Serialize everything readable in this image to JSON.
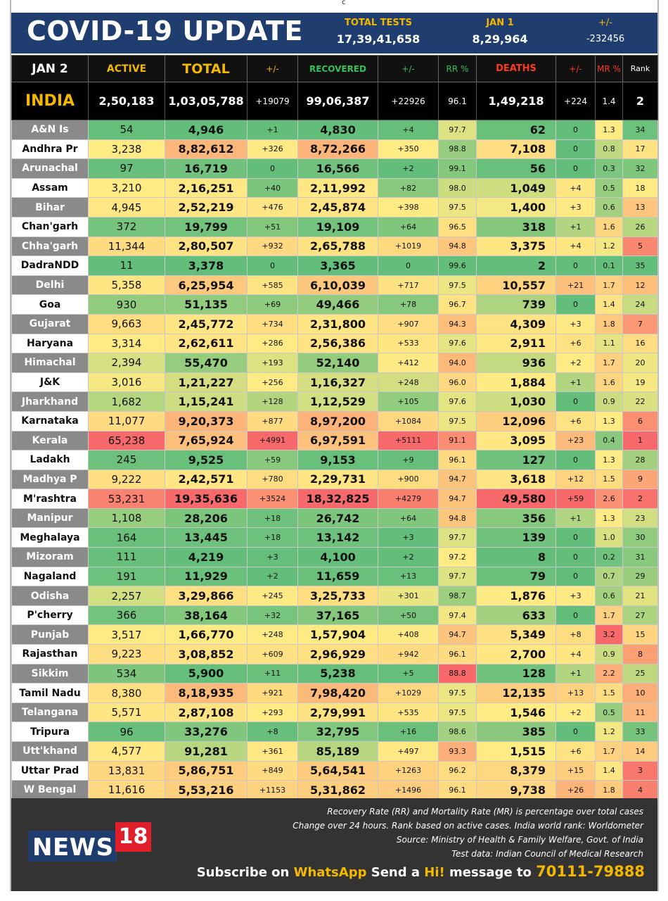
{
  "top_mark": "c",
  "header": {
    "title": "COVID-19 UPDATE",
    "total_tests": {
      "label": "TOTAL TESTS",
      "value": "17,39,41,658"
    },
    "jan1": {
      "label": "JAN 1",
      "value": "8,29,964"
    },
    "diff": {
      "label": "+/-",
      "value": "-232456"
    }
  },
  "columns": {
    "date": "JAN 2",
    "active": "ACTIVE",
    "total": "TOTAL",
    "total_change": "+/-",
    "recovered": "RECOVERED",
    "recovered_change": "+/-",
    "rr": "RR %",
    "deaths": "DEATHS",
    "deaths_change": "+/-",
    "mr": "MR %",
    "rank": "Rank"
  },
  "india": {
    "name": "INDIA",
    "active": "2,50,183",
    "total": "1,03,05,788",
    "total_change": "+19079",
    "recovered": "99,06,387",
    "recovered_change": "+22926",
    "rr": "96.1",
    "deaths": "1,49,218",
    "deaths_change": "+224",
    "mr": "1.4",
    "rank": "2"
  },
  "states": [
    [
      "A&N Is",
      "54",
      "4,946",
      "+1",
      "4,830",
      "+4",
      "97.7",
      "62",
      "0",
      "1.3",
      "34"
    ],
    [
      "Andhra Pr",
      "3,238",
      "8,82,612",
      "+326",
      "8,72,266",
      "+350",
      "98.8",
      "7,108",
      "0",
      "0.8",
      "17"
    ],
    [
      "Arunachal",
      "97",
      "16,719",
      "0",
      "16,566",
      "+2",
      "99.1",
      "56",
      "0",
      "0.3",
      "32"
    ],
    [
      "Assam",
      "3,210",
      "2,16,251",
      "+40",
      "2,11,992",
      "+82",
      "98.0",
      "1,049",
      "+4",
      "0.5",
      "18"
    ],
    [
      "Bihar",
      "4,945",
      "2,52,219",
      "+476",
      "2,45,874",
      "+398",
      "97.5",
      "1,400",
      "+3",
      "0.6",
      "13"
    ],
    [
      "Chan'garh",
      "372",
      "19,799",
      "+51",
      "19,109",
      "+64",
      "96.5",
      "318",
      "+1",
      "1.6",
      "26"
    ],
    [
      "Chha'garh",
      "11,344",
      "2,80,507",
      "+932",
      "2,65,788",
      "+1019",
      "94.8",
      "3,375",
      "+4",
      "1.2",
      "5"
    ],
    [
      "DadraNDD",
      "11",
      "3,378",
      "0",
      "3,365",
      "0",
      "99.6",
      "2",
      "0",
      "0.1",
      "35"
    ],
    [
      "Delhi",
      "5,358",
      "6,25,954",
      "+585",
      "6,10,039",
      "+717",
      "97.5",
      "10,557",
      "+21",
      "1.7",
      "12"
    ],
    [
      "Goa",
      "930",
      "51,135",
      "+69",
      "49,466",
      "+78",
      "96.7",
      "739",
      "0",
      "1.4",
      "24"
    ],
    [
      "Gujarat",
      "9,663",
      "2,45,772",
      "+734",
      "2,31,800",
      "+907",
      "94.3",
      "4,309",
      "+3",
      "1.8",
      "7"
    ],
    [
      "Haryana",
      "3,314",
      "2,62,611",
      "+286",
      "2,56,386",
      "+533",
      "97.6",
      "2,911",
      "+6",
      "1.1",
      "16"
    ],
    [
      "Himachal",
      "2,394",
      "55,470",
      "+193",
      "52,140",
      "+412",
      "94.0",
      "936",
      "+2",
      "1.7",
      "20"
    ],
    [
      "J&K",
      "3,016",
      "1,21,227",
      "+256",
      "1,16,327",
      "+248",
      "96.0",
      "1,884",
      "+1",
      "1.6",
      "19"
    ],
    [
      "Jharkhand",
      "1,682",
      "1,15,241",
      "+128",
      "1,12,529",
      "+105",
      "97.6",
      "1,030",
      "0",
      "0.9",
      "22"
    ],
    [
      "Karnataka",
      "11,077",
      "9,20,373",
      "+877",
      "8,97,200",
      "+1084",
      "97.5",
      "12,096",
      "+6",
      "1.3",
      "6"
    ],
    [
      "Kerala",
      "65,238",
      "7,65,924",
      "+4991",
      "6,97,591",
      "+5111",
      "91.1",
      "3,095",
      "+23",
      "0.4",
      "1"
    ],
    [
      "Ladakh",
      "245",
      "9,525",
      "+59",
      "9,153",
      "+9",
      "96.1",
      "127",
      "0",
      "1.3",
      "28"
    ],
    [
      "Madhya P",
      "9,222",
      "2,42,571",
      "+780",
      "2,29,731",
      "+900",
      "94.7",
      "3,618",
      "+12",
      "1.5",
      "9"
    ],
    [
      "M'rashtra",
      "53,231",
      "19,35,636",
      "+3524",
      "18,32,825",
      "+4279",
      "94.7",
      "49,580",
      "+59",
      "2.6",
      "2"
    ],
    [
      "Manipur",
      "1,108",
      "28,206",
      "+18",
      "26,742",
      "+64",
      "94.8",
      "356",
      "+1",
      "1.3",
      "23"
    ],
    [
      "Meghalaya",
      "164",
      "13,445",
      "+18",
      "13,142",
      "+3",
      "97.7",
      "139",
      "0",
      "1.0",
      "30"
    ],
    [
      "Mizoram",
      "111",
      "4,219",
      "+3",
      "4,100",
      "+2",
      "97.2",
      "8",
      "0",
      "0.2",
      "31"
    ],
    [
      "Nagaland",
      "191",
      "11,929",
      "+2",
      "11,659",
      "+13",
      "97.7",
      "79",
      "0",
      "0.7",
      "29"
    ],
    [
      "Odisha",
      "2,257",
      "3,29,866",
      "+245",
      "3,25,733",
      "+301",
      "98.7",
      "1,876",
      "+3",
      "0.6",
      "21"
    ],
    [
      "P'cherry",
      "366",
      "38,164",
      "+32",
      "37,165",
      "+50",
      "97.4",
      "633",
      "0",
      "1.7",
      "27"
    ],
    [
      "Punjab",
      "3,517",
      "1,66,770",
      "+248",
      "1,57,904",
      "+408",
      "94.7",
      "5,349",
      "+8",
      "3.2",
      "15"
    ],
    [
      "Rajasthan",
      "9,223",
      "3,08,852",
      "+609",
      "2,96,929",
      "+942",
      "96.1",
      "2,700",
      "+4",
      "0.9",
      "8"
    ],
    [
      "Sikkim",
      "534",
      "5,900",
      "+11",
      "5,238",
      "+5",
      "88.8",
      "128",
      "+1",
      "2.2",
      "25"
    ],
    [
      "Tamil Nadu",
      "8,380",
      "8,18,935",
      "+921",
      "7,98,420",
      "+1029",
      "97.5",
      "12,135",
      "+13",
      "1.5",
      "10"
    ],
    [
      "Telangana",
      "5,571",
      "2,87,108",
      "+293",
      "2,79,991",
      "+535",
      "97.5",
      "1,546",
      "+2",
      "0.5",
      "11"
    ],
    [
      "Tripura",
      "96",
      "33,276",
      "+8",
      "32,795",
      "+16",
      "98.6",
      "385",
      "0",
      "1.2",
      "33"
    ],
    [
      "Utt'khand",
      "4,577",
      "91,281",
      "+361",
      "85,189",
      "+497",
      "93.3",
      "1,515",
      "+6",
      "1.7",
      "14"
    ],
    [
      "Uttar Prad",
      "13,831",
      "5,86,751",
      "+849",
      "5,64,541",
      "+1263",
      "96.2",
      "8,379",
      "+15",
      "1.4",
      "3"
    ],
    [
      "W Bengal",
      "11,616",
      "5,53,216",
      "+1153",
      "5,31,862",
      "+1496",
      "96.1",
      "9,738",
      "+26",
      "1.8",
      "4"
    ]
  ],
  "scale_colors": {
    "green": "#63be7b",
    "yellow": "#ffeb84",
    "red": "#f8696b"
  },
  "footer": {
    "notes": [
      "Recovery Rate (RR) and Mortality Rate (MR) is percentage over total cases",
      "Change over 24 hours. Rank based on active cases. India world rank: Worldometer",
      "Source: Ministry of Health & Family Welfare, Govt. of India",
      "Test data: Indian Council of Medical Research"
    ],
    "logo_word": "NEWS",
    "logo_num": "18",
    "subscribe": {
      "part1": "Subscribe on ",
      "whatsapp": "WhatsApp",
      "part2": " Send a ",
      "hi": "Hi!",
      "part3": " message to ",
      "number1": "70111-",
      "number2": "79888"
    }
  }
}
